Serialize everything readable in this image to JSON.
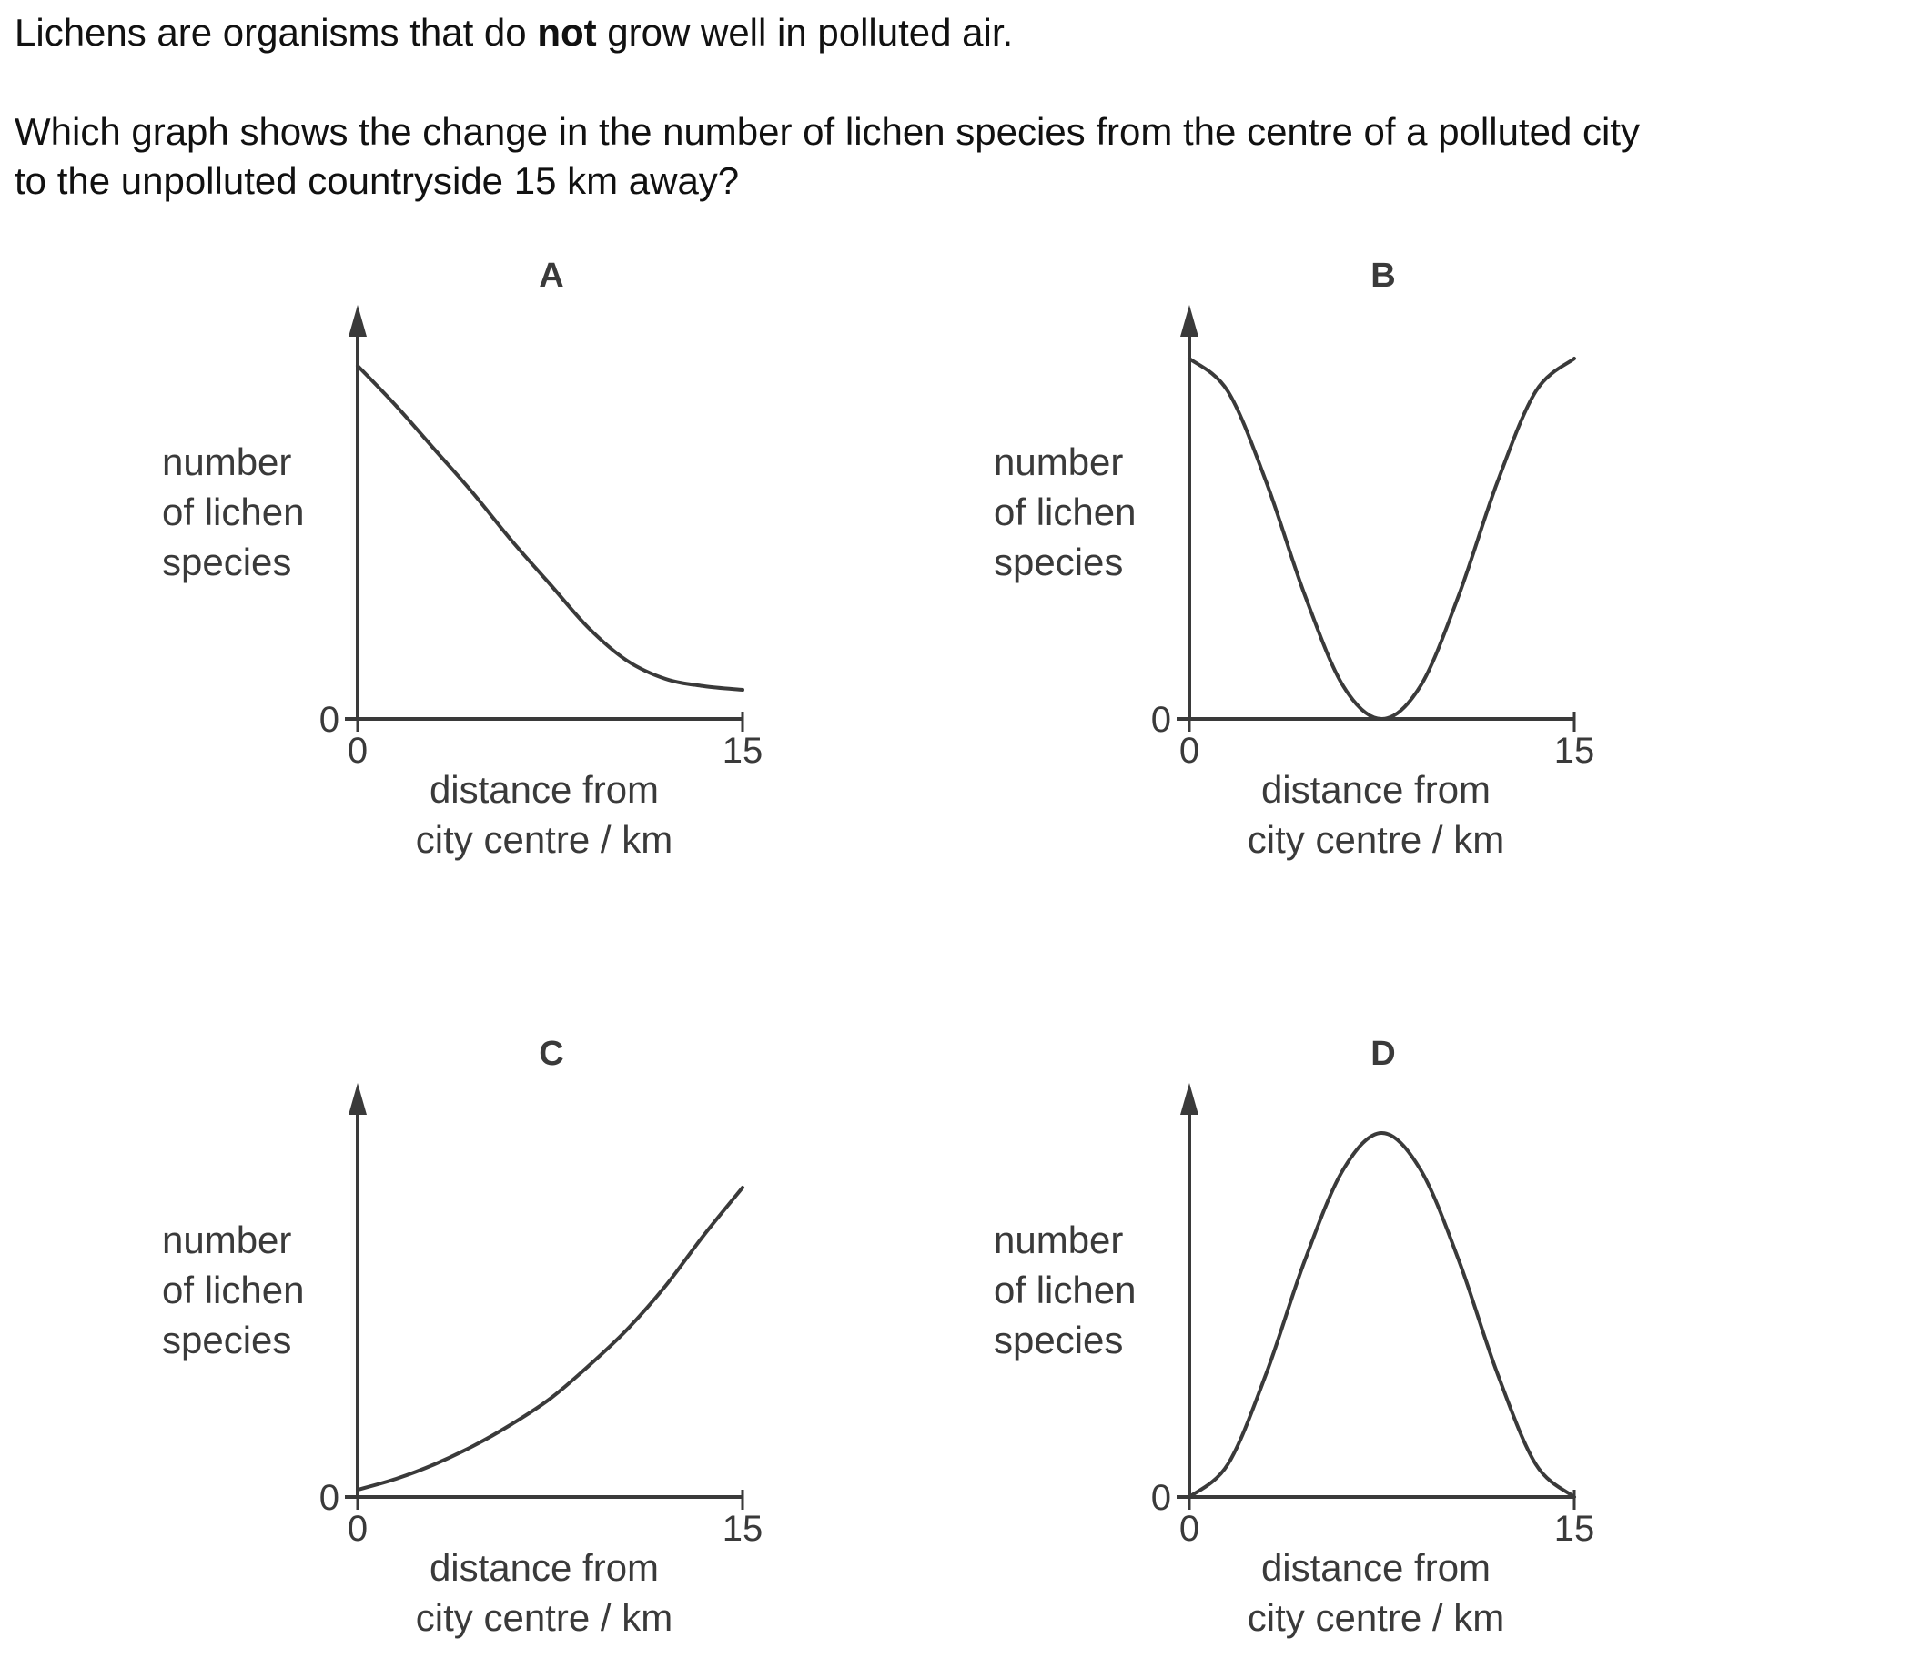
{
  "question": {
    "line1_before": "Lichens are organisms that do ",
    "line1_bold": "not",
    "line1_after": " grow well in polluted air.",
    "line2": "Which graph shows the change in the number of lichen species from the centre of a polluted city",
    "line3": "to the unpolluted countryside 15 km away?"
  },
  "chart_data": [
    {
      "type": "line",
      "title": "A",
      "ylabel": [
        "number",
        "of lichen",
        "species"
      ],
      "xlabel": [
        "distance from",
        "city centre / km"
      ],
      "x_ticks": [
        "0",
        "15"
      ],
      "y_ticks": [
        "0"
      ],
      "xlim": [
        0,
        15
      ],
      "x": [
        0,
        1.5,
        3,
        4.5,
        6,
        7.5,
        9,
        10.5,
        12,
        13.5,
        15
      ],
      "y": [
        0.97,
        0.86,
        0.74,
        0.62,
        0.49,
        0.37,
        0.25,
        0.16,
        0.11,
        0.09,
        0.08
      ]
    },
    {
      "type": "line",
      "title": "B",
      "ylabel": [
        "number",
        "of lichen",
        "species"
      ],
      "xlabel": [
        "distance from",
        "city centre / km"
      ],
      "x_ticks": [
        "0",
        "15"
      ],
      "y_ticks": [
        "0"
      ],
      "xlim": [
        0,
        15
      ],
      "x": [
        0,
        1.5,
        3,
        4.5,
        6,
        7.5,
        9,
        10.5,
        12,
        13.5,
        15
      ],
      "y": [
        0.99,
        0.9,
        0.65,
        0.34,
        0.09,
        0.0,
        0.09,
        0.34,
        0.65,
        0.9,
        0.99
      ]
    },
    {
      "type": "line",
      "title": "C",
      "ylabel": [
        "number",
        "of lichen",
        "species"
      ],
      "xlabel": [
        "distance from",
        "city centre / km"
      ],
      "x_ticks": [
        "0",
        "15"
      ],
      "y_ticks": [
        "0"
      ],
      "xlim": [
        0,
        15
      ],
      "x": [
        0,
        1.5,
        3,
        4.5,
        6,
        7.5,
        9,
        10.5,
        12,
        13.5,
        15
      ],
      "y": [
        0.02,
        0.05,
        0.09,
        0.14,
        0.2,
        0.27,
        0.36,
        0.46,
        0.58,
        0.72,
        0.85
      ]
    },
    {
      "type": "line",
      "title": "D",
      "ylabel": [
        "number",
        "of lichen",
        "species"
      ],
      "xlabel": [
        "distance from",
        "city centre / km"
      ],
      "x_ticks": [
        "0",
        "15"
      ],
      "y_ticks": [
        "0"
      ],
      "xlim": [
        0,
        15
      ],
      "x": [
        0,
        1.5,
        3,
        4.5,
        6,
        7.5,
        9,
        10.5,
        12,
        13.5,
        15
      ],
      "y": [
        0.0,
        0.09,
        0.34,
        0.65,
        0.9,
        1.0,
        0.9,
        0.65,
        0.34,
        0.09,
        0.0
      ]
    }
  ]
}
